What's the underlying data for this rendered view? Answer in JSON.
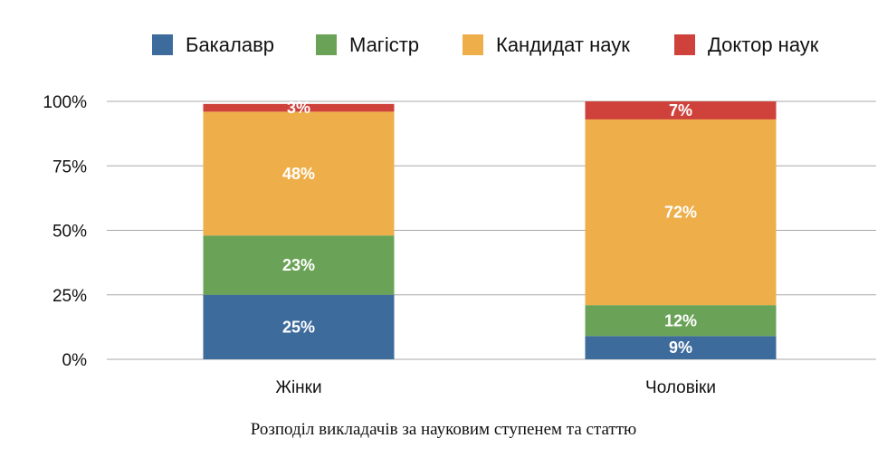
{
  "chart_data": {
    "type": "bar",
    "stacked": true,
    "categories": [
      "Жінки",
      "Чоловіки"
    ],
    "series": [
      {
        "name": "Бакалавр",
        "color": "#3d6b9c",
        "values": [
          25,
          9
        ],
        "labels": [
          "25%",
          "9%"
        ]
      },
      {
        "name": "Магістр",
        "color": "#6aa357",
        "values": [
          23,
          12
        ],
        "labels": [
          "23%",
          "12%"
        ]
      },
      {
        "name": "Кандидат наук",
        "color": "#eeae4a",
        "values": [
          48,
          72
        ],
        "labels": [
          "48%",
          "72%"
        ]
      },
      {
        "name": "Доктор наук",
        "color": "#cf423c",
        "values": [
          3,
          7
        ],
        "labels": [
          "3%",
          "7%"
        ]
      }
    ],
    "ylim": [
      0,
      100
    ],
    "yticks": [
      0,
      25,
      50,
      75,
      100
    ],
    "ytick_labels": [
      "0%",
      "25%",
      "50%",
      "75%",
      "100%"
    ],
    "grid": true,
    "legend_position": "top",
    "caption": "Розподіл викладачів за науковим ступенем та статтю"
  }
}
